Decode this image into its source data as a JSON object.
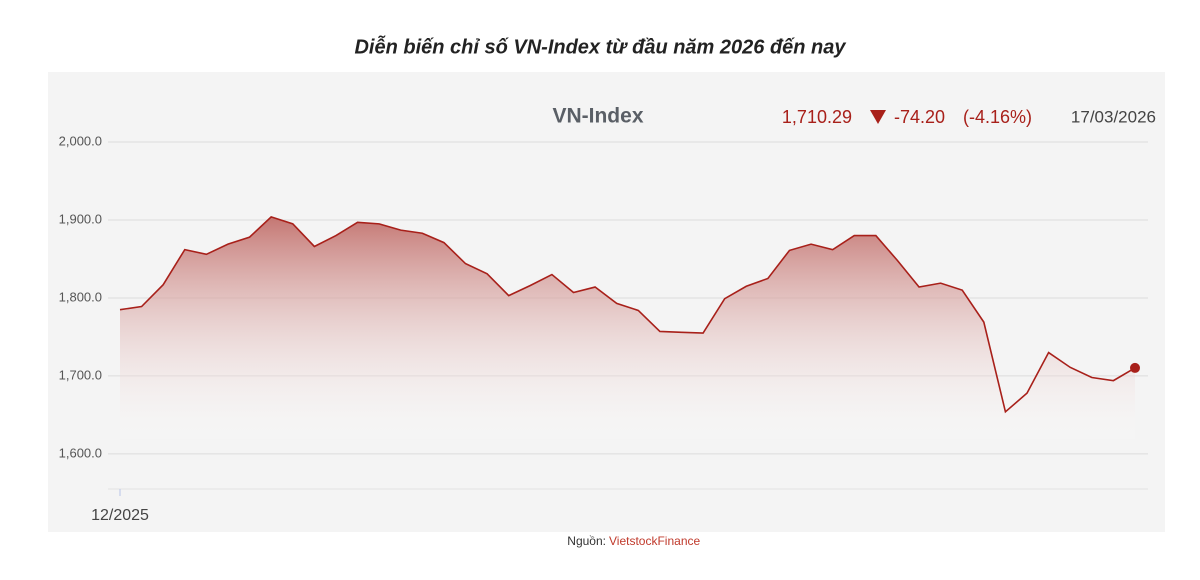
{
  "chart_data": {
    "type": "line",
    "title": "Diễn biến chỉ số VN-Index từ đầu năm 2026 đến nay",
    "header": {
      "name": "VN-Index",
      "last": "1,710.29",
      "change": "-74.20",
      "change_pct": "(-4.16%)",
      "date": "17/03/2026"
    },
    "source_label": "Nguồn:",
    "source": "VietstockFinance",
    "categories": [
      "12/2025",
      null,
      null,
      null,
      null,
      null,
      null,
      null,
      null,
      null,
      null,
      null,
      null,
      null,
      null,
      null,
      null,
      null,
      null,
      null,
      null,
      null,
      null,
      null,
      null,
      null,
      null,
      null,
      null,
      null,
      null,
      null,
      null,
      null,
      null,
      null,
      null,
      null,
      null,
      null,
      null,
      null,
      null,
      null,
      null,
      null,
      null,
      null
    ],
    "series": [
      {
        "name": "VN-Index",
        "color": "#a8201a",
        "values": [
          1785,
          1789,
          1817,
          1862,
          1856,
          1869,
          1878,
          1904,
          1895,
          1866,
          1880,
          1897,
          1895,
          1887,
          1883,
          1871,
          1844,
          1831,
          1803,
          1816,
          1830,
          1807,
          1814,
          1793,
          1784,
          1757,
          1756,
          1755,
          1799,
          1815,
          1825,
          1861,
          1869,
          1862,
          1880,
          1880,
          1848,
          1814,
          1819,
          1810,
          1769,
          1654,
          1678,
          1730,
          1711,
          1698,
          1694,
          1710.29
        ]
      }
    ],
    "ylim": [
      1555,
      2000
    ],
    "yticks": [
      {
        "value": 1600,
        "label": "1,600.0"
      },
      {
        "value": 1700,
        "label": "1,700.0"
      },
      {
        "value": 1800,
        "label": "1,800.0"
      },
      {
        "value": 1900,
        "label": "1,900.0"
      },
      {
        "value": 2000,
        "label": "2,000.0"
      }
    ],
    "grid": true
  }
}
